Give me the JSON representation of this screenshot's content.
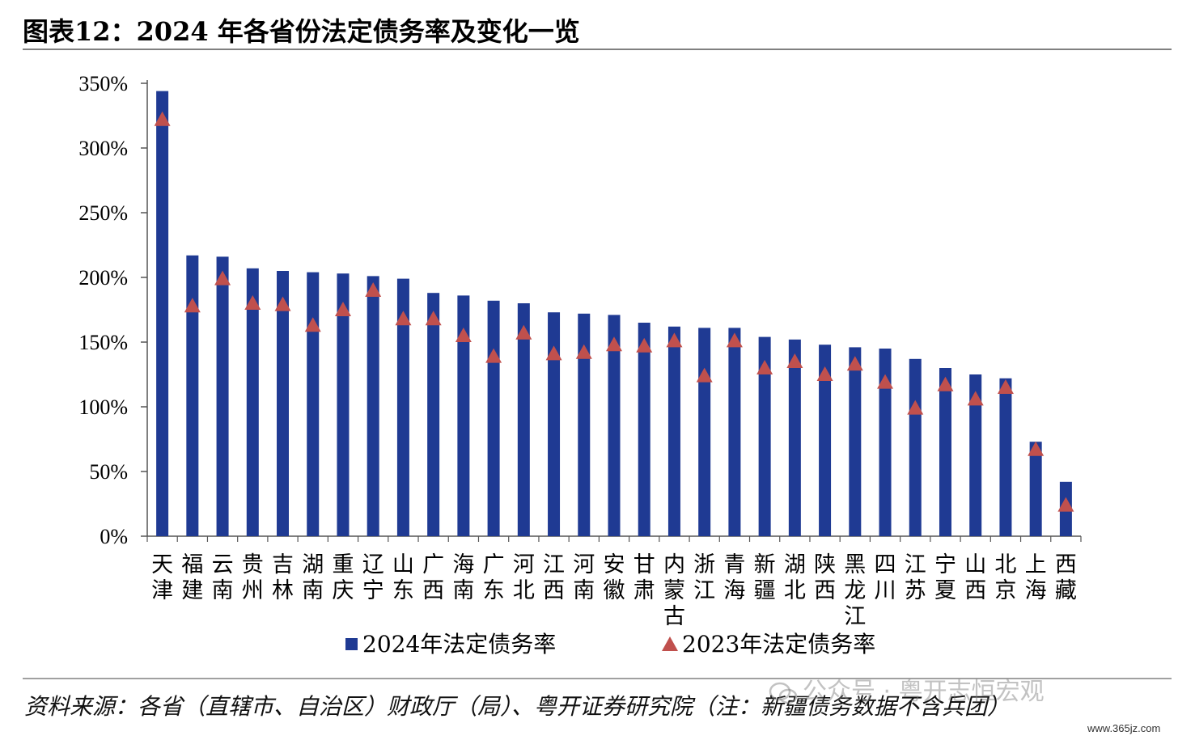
{
  "title": "图表12：2024 年各省份法定债务率及变化一览",
  "source": "资料来源：各省（直辖市、自治区）财政厅（局）、粤开证券研究院（注：新疆债务数据不含兵团）",
  "watermark": "公众号 · 粤开志恒宏观",
  "site": "www.365jz.com",
  "colors": {
    "bar": "#1f3a93",
    "marker": "#c0504d"
  },
  "chart_data": {
    "type": "bar",
    "categories": [
      "天津",
      "福建",
      "云南",
      "贵州",
      "吉林",
      "湖南",
      "重庆",
      "辽宁",
      "山东",
      "广西",
      "海南",
      "广东",
      "河北",
      "江西",
      "河南",
      "安徽",
      "甘肃",
      "内蒙古",
      "浙江",
      "青海",
      "新疆",
      "湖北",
      "陕西",
      "黑龙江",
      "四川",
      "江苏",
      "宁夏",
      "山西",
      "北京",
      "上海",
      "西藏"
    ],
    "series": [
      {
        "name": "2024年法定债务率",
        "type": "bar",
        "values": [
          344,
          217,
          216,
          207,
          205,
          204,
          203,
          201,
          199,
          188,
          186,
          182,
          180,
          173,
          172,
          171,
          165,
          162,
          161,
          161,
          154,
          152,
          148,
          146,
          145,
          137,
          130,
          125,
          122,
          73,
          42
        ]
      },
      {
        "name": "2023年法定债务率",
        "type": "marker",
        "values": [
          322,
          178,
          199,
          180,
          179,
          163,
          175,
          190,
          168,
          168,
          155,
          139,
          157,
          141,
          142,
          148,
          147,
          151,
          124,
          151,
          130,
          135,
          125,
          133,
          119,
          99,
          117,
          106,
          115,
          67,
          24
        ]
      }
    ],
    "yticks": [
      "0%",
      "50%",
      "100%",
      "150%",
      "200%",
      "250%",
      "300%",
      "350%"
    ],
    "ylim": [
      0,
      350
    ],
    "legend_position": "bottom"
  }
}
